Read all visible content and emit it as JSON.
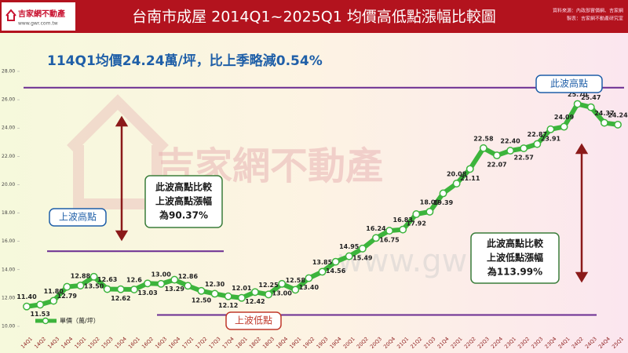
{
  "chart_data": {
    "type": "line",
    "title": "台南市成屋 2014Q1~2025Q1 均價高低點漲幅比較圖",
    "subtitle": "114Q1均價24.24萬/坪，比上季略減0.54%",
    "logo": {
      "name": "吉家網不動產",
      "url": "www.gwr.com.tw"
    },
    "source_note": [
      "資料來源：內政部實價網、吉家網",
      "製表：吉家網不動產研究室"
    ],
    "watermark": {
      "name": "吉家網不動產",
      "url": "www.gwr.com"
    },
    "categories": [
      "14Q1",
      "14Q2",
      "14Q3",
      "14Q4",
      "15Q1",
      "15Q2",
      "15Q3",
      "15Q4",
      "16Q1",
      "16Q2",
      "16Q3",
      "16Q4",
      "17Q1",
      "17Q2",
      "17Q3",
      "17Q4",
      "18Q1",
      "18Q2",
      "18Q3",
      "18Q4",
      "19Q1",
      "19Q2",
      "19Q3",
      "19Q4",
      "20Q1",
      "20Q2",
      "20Q3",
      "20Q4",
      "21Q1",
      "21Q2",
      "21Q3",
      "21Q4",
      "22Q1",
      "22Q2",
      "22Q3",
      "22Q4",
      "23Q1",
      "23Q2",
      "23Q3",
      "23Q4",
      "24Q1",
      "24Q2",
      "24Q3",
      "24Q4",
      "25Q1"
    ],
    "series": [
      {
        "name": "單價（萬/坪）",
        "color": "#3cb43c",
        "values": [
          11.4,
          11.53,
          11.8,
          12.79,
          12.88,
          13.5,
          12.63,
          12.62,
          12.6,
          13.03,
          13.0,
          13.29,
          12.86,
          12.5,
          12.3,
          12.12,
          12.01,
          12.42,
          12.25,
          13.0,
          12.58,
          13.4,
          13.85,
          14.56,
          14.95,
          15.49,
          16.24,
          16.75,
          16.83,
          17.92,
          18.09,
          19.39,
          20.08,
          21.11,
          22.58,
          22.07,
          22.4,
          22.57,
          22.87,
          23.91,
          24.09,
          25.7,
          25.47,
          24.37,
          24.24
        ],
        "value_labels": [
          "11.40",
          "11.53",
          "11.80",
          "12.79",
          "12.88",
          "13.50",
          "12.63",
          "12.62",
          "12.6",
          "13.03",
          "13.00",
          "13.29",
          "12.86",
          "12.50",
          "12.30",
          "12.12",
          "12.01",
          "12.42",
          "12.25",
          "13.00",
          "12.58",
          "13.40",
          "13.85",
          "14.56",
          "14.95",
          "15.49",
          "16.24",
          "16.75",
          "16.83",
          "17.92",
          "18.09",
          "19.39",
          "20.08",
          "21.11",
          "22.58",
          "22.07",
          "22.40",
          "22.57",
          "22.87",
          "23.91",
          "24.09",
          "25.70",
          "25.47",
          "24.37",
          "24.24"
        ]
      }
    ],
    "ylim": [
      10,
      28
    ],
    "yticks": [
      {
        "value": 10,
        "label": "10.00"
      },
      {
        "value": 12,
        "label": "12.00"
      },
      {
        "value": 14,
        "label": "14.00"
      },
      {
        "value": 16,
        "label": "16.00"
      },
      {
        "value": 18,
        "label": "18.00"
      },
      {
        "value": 20,
        "label": "20.00"
      },
      {
        "value": 22,
        "label": "22.00"
      },
      {
        "value": 24,
        "label": "24.00"
      },
      {
        "value": 26,
        "label": "26.00"
      },
      {
        "value": 28,
        "label": "28.00"
      }
    ],
    "reference_lines": [
      {
        "value": 26.85,
        "color": "#6a2c91"
      },
      {
        "value": 15.3,
        "color": "#6a2c91"
      },
      {
        "value": 10.8,
        "color": "#6a2c91"
      }
    ],
    "annotations": [
      {
        "lines": [
          "上波高點"
        ],
        "color": "#1f5fa8"
      },
      {
        "lines": [
          "此波高點比較",
          "上波高點漲幅",
          "為90.37%"
        ],
        "color": "#1a1a1a"
      },
      {
        "lines": [
          "上波低點"
        ],
        "color": "#c0392b"
      },
      {
        "lines": [
          "此波高點"
        ],
        "color": "#1f5fa8"
      },
      {
        "lines": [
          "此波高點比較",
          "上波低點漲幅",
          "為113.99%"
        ],
        "color": "#1a1a1a"
      }
    ]
  }
}
